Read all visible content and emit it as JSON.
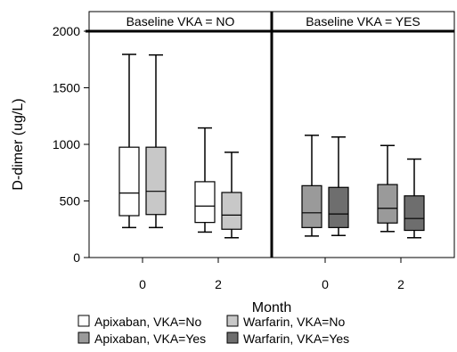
{
  "chart_data": {
    "type": "boxplot",
    "ylabel": "D-dimer (ug/L)",
    "xlabel": "Month",
    "ylim": [
      0,
      2000
    ],
    "yticks": [
      0,
      500,
      1000,
      1500,
      2000
    ],
    "panels": [
      {
        "label": "Baseline VKA = NO",
        "categories": [
          "0",
          "2"
        ]
      },
      {
        "label": "Baseline VKA = YES",
        "categories": [
          "0",
          "2"
        ]
      }
    ],
    "legend_placement": "bottom",
    "series": [
      {
        "name": "Apixaban, VKA=No",
        "color": "#ffffff",
        "panel": 0,
        "offset": -1,
        "boxes": [
          {
            "category": "0",
            "min": 265,
            "q1": 370,
            "median": 570,
            "q3": 975,
            "max": 1795
          },
          {
            "category": "2",
            "min": 225,
            "q1": 310,
            "median": 455,
            "q3": 670,
            "max": 1145
          }
        ]
      },
      {
        "name": "Warfarin, VKA=No",
        "color": "#c8c8c8",
        "panel": 0,
        "offset": 1,
        "boxes": [
          {
            "category": "0",
            "min": 265,
            "q1": 380,
            "median": 585,
            "q3": 975,
            "max": 1790
          },
          {
            "category": "2",
            "min": 175,
            "q1": 250,
            "median": 375,
            "q3": 575,
            "max": 930
          }
        ]
      },
      {
        "name": "Apixaban, VKA=Yes",
        "color": "#9a9a9a",
        "panel": 1,
        "offset": -1,
        "boxes": [
          {
            "category": "0",
            "min": 190,
            "q1": 265,
            "median": 395,
            "q3": 635,
            "max": 1080
          },
          {
            "category": "2",
            "min": 230,
            "q1": 305,
            "median": 435,
            "q3": 645,
            "max": 990
          }
        ]
      },
      {
        "name": "Warfarin, VKA=Yes",
        "color": "#6e6e6e",
        "panel": 1,
        "offset": 1,
        "boxes": [
          {
            "category": "0",
            "min": 195,
            "q1": 265,
            "median": 385,
            "q3": 620,
            "max": 1065
          },
          {
            "category": "2",
            "min": 175,
            "q1": 240,
            "median": 345,
            "q3": 545,
            "max": 870
          }
        ]
      }
    ]
  }
}
